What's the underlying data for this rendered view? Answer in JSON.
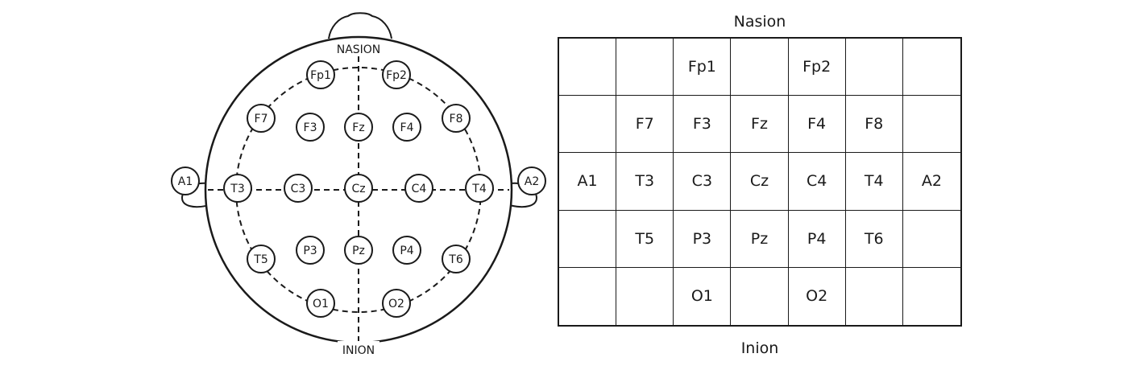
{
  "head": {
    "nasion_label": "NASION",
    "inion_label": "INION",
    "electrodes": [
      {
        "label": "Fp1"
      },
      {
        "label": "Fp2"
      },
      {
        "label": "F7"
      },
      {
        "label": "F3"
      },
      {
        "label": "Fz"
      },
      {
        "label": "F4"
      },
      {
        "label": "F8"
      },
      {
        "label": "A1"
      },
      {
        "label": "T3"
      },
      {
        "label": "C3"
      },
      {
        "label": "Cz"
      },
      {
        "label": "C4"
      },
      {
        "label": "T4"
      },
      {
        "label": "A2"
      },
      {
        "label": "T5"
      },
      {
        "label": "P3"
      },
      {
        "label": "Pz"
      },
      {
        "label": "P4"
      },
      {
        "label": "T6"
      },
      {
        "label": "O1"
      },
      {
        "label": "O2"
      }
    ]
  },
  "grid": {
    "top_label": "Nasion",
    "bottom_label": "Inion",
    "rows": [
      [
        "",
        "",
        "Fp1",
        "",
        "Fp2",
        "",
        ""
      ],
      [
        "",
        "F7",
        "F3",
        "Fz",
        "F4",
        "F8",
        ""
      ],
      [
        "A1",
        "T3",
        "C3",
        "Cz",
        "C4",
        "T4",
        "A2"
      ],
      [
        "",
        "T5",
        "P3",
        "Pz",
        "P4",
        "T6",
        ""
      ],
      [
        "",
        "",
        "O1",
        "",
        "O2",
        "",
        ""
      ]
    ]
  }
}
